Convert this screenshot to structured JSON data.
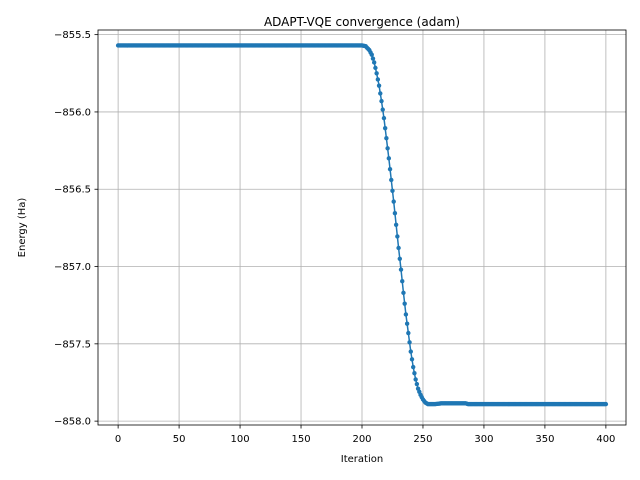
{
  "chart_data": {
    "type": "line",
    "title": "ADAPT-VQE convergence (adam)",
    "xlabel": "Iteration",
    "ylabel": "Energy (Ha)",
    "xlim": [
      -16.5,
      416.5
    ],
    "ylim": [
      -858.025,
      -855.47
    ],
    "x_ticks": [
      0,
      50,
      100,
      150,
      200,
      250,
      300,
      350,
      400
    ],
    "x_tick_labels": [
      "0",
      "50",
      "100",
      "150",
      "200",
      "250",
      "300",
      "350",
      "400"
    ],
    "y_ticks": [
      -855.5,
      -856.0,
      -856.5,
      -857.0,
      -857.5,
      -858.0
    ],
    "y_tick_labels": [
      "−855.5",
      "−856.0",
      "−856.5",
      "−857.0",
      "−857.5",
      "−858.0"
    ],
    "grid": true,
    "marker": "circle",
    "color": "#1f77b4",
    "series": [
      {
        "x": [
          0,
          50,
          100,
          150,
          200,
          203,
          206,
          208,
          210,
          212,
          214,
          216,
          218,
          220,
          222,
          224,
          226,
          228,
          230,
          232,
          234,
          236,
          238,
          240,
          242,
          244,
          246,
          248,
          250,
          252,
          254,
          256,
          258,
          260,
          265,
          270,
          275,
          280,
          285,
          287,
          290,
          300,
          350,
          400
        ],
        "y": [
          -855.57,
          -855.57,
          -855.57,
          -855.57,
          -855.57,
          -855.575,
          -855.6,
          -855.63,
          -855.68,
          -855.75,
          -855.83,
          -855.93,
          -856.04,
          -856.17,
          -856.3,
          -856.44,
          -856.58,
          -856.73,
          -856.88,
          -857.02,
          -857.17,
          -857.31,
          -857.43,
          -857.55,
          -857.65,
          -857.73,
          -857.79,
          -857.83,
          -857.86,
          -857.88,
          -857.89,
          -857.89,
          -857.89,
          -857.89,
          -857.885,
          -857.885,
          -857.885,
          -857.885,
          -857.885,
          -857.89,
          -857.89,
          -857.89,
          -857.89,
          -857.89
        ]
      }
    ]
  }
}
